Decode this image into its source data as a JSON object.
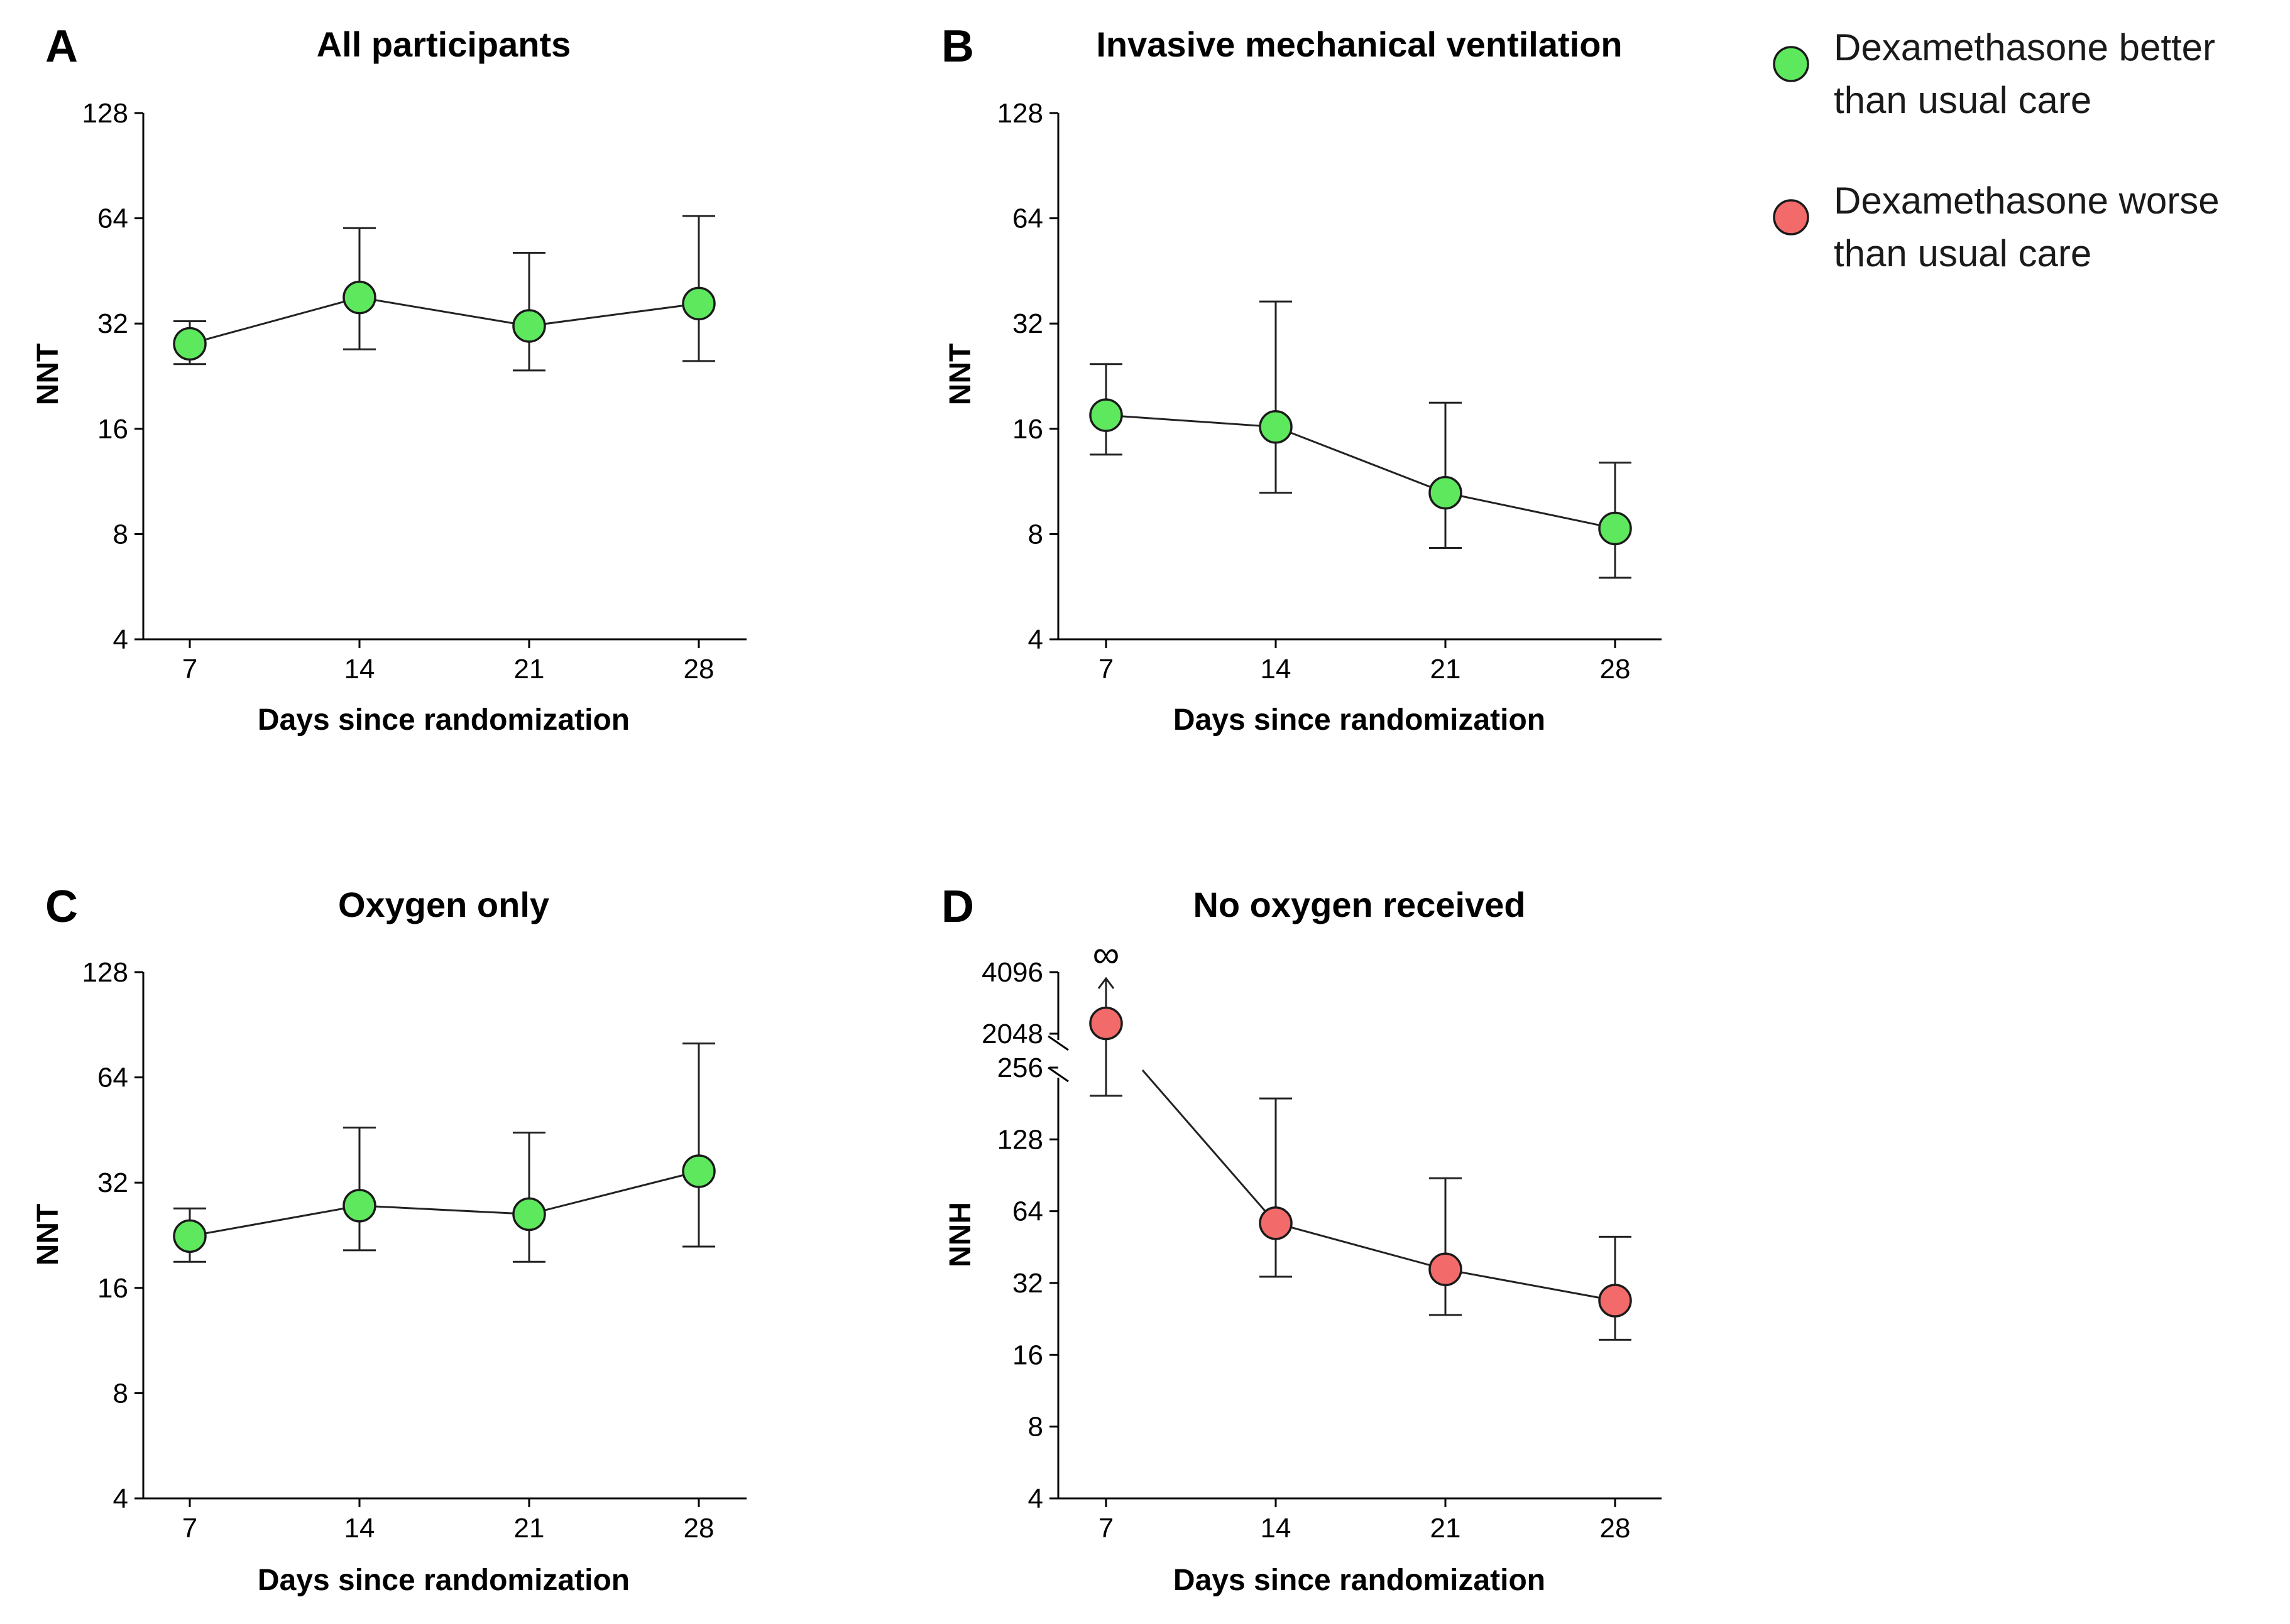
{
  "legend": {
    "items": [
      {
        "label_line1": "Dexamethasone better",
        "label_line2": "than usual care",
        "color": "#5ee85e"
      },
      {
        "label_line1": "Dexamethasone worse",
        "label_line2": "than usual care",
        "color": "#f26a6a"
      }
    ]
  },
  "chart_data": [
    {
      "type": "line",
      "panel": "A",
      "title": "All participants",
      "xlabel": "Days since randomization",
      "ylabel": "NNT",
      "yscale": "log2",
      "ylim": [
        4,
        128
      ],
      "yticks": [
        4,
        8,
        16,
        32,
        64,
        128
      ],
      "ytick_labels": [
        "4",
        "8",
        "16",
        "32",
        "64",
        "128"
      ],
      "x": [
        7,
        14,
        21,
        28
      ],
      "x_labels": [
        "7",
        "14",
        "21",
        "28"
      ],
      "values": [
        28,
        38,
        31.5,
        36.5
      ],
      "err_low": [
        24.5,
        27,
        23.5,
        25
      ],
      "err_high": [
        32.5,
        60,
        51,
        65
      ],
      "color": "#5ee85e"
    },
    {
      "type": "line",
      "panel": "B",
      "title": "Invasive mechanical ventilation",
      "xlabel": "Days since randomization",
      "ylabel": "NNT",
      "yscale": "log2",
      "ylim": [
        4,
        128
      ],
      "yticks": [
        4,
        8,
        16,
        32,
        64,
        128
      ],
      "ytick_labels": [
        "4",
        "8",
        "16",
        "32",
        "64",
        "128"
      ],
      "x": [
        7,
        14,
        21,
        28
      ],
      "x_labels": [
        "7",
        "14",
        "21",
        "28"
      ],
      "values": [
        17.5,
        16.2,
        10.5,
        8.3
      ],
      "err_low": [
        13.5,
        10.5,
        7.3,
        6.0
      ],
      "err_high": [
        24.5,
        37,
        19,
        12.8
      ],
      "color": "#5ee85e"
    },
    {
      "type": "line",
      "panel": "C",
      "title": "Oxygen only",
      "xlabel": "Days since randomization",
      "ylabel": "NNT",
      "yscale": "log2",
      "ylim": [
        4,
        128
      ],
      "yticks": [
        4,
        8,
        16,
        32,
        64,
        128
      ],
      "ytick_labels": [
        "4",
        "8",
        "16",
        "32",
        "64",
        "128"
      ],
      "x": [
        7,
        14,
        21,
        28
      ],
      "x_labels": [
        "7",
        "14",
        "21",
        "28"
      ],
      "values": [
        22.5,
        27.5,
        26,
        34.5
      ],
      "err_low": [
        19,
        20.5,
        19,
        21
      ],
      "err_high": [
        27,
        46,
        44.5,
        80
      ],
      "color": "#5ee85e"
    },
    {
      "type": "line",
      "panel": "D",
      "title": "No oxygen received",
      "xlabel": "Days since randomization",
      "ylabel": "NNH",
      "yscale": "log2",
      "axis_break": "between 256 and 2048",
      "ylim": [
        4,
        4096
      ],
      "yticks": [
        4,
        8,
        16,
        32,
        64,
        128,
        256,
        2048,
        4096
      ],
      "ytick_labels": [
        "4",
        "8",
        "16",
        "32",
        "64",
        "128",
        "256",
        "2048",
        "4096"
      ],
      "x": [
        7,
        14,
        21,
        28
      ],
      "x_labels": [
        "7",
        "14",
        "21",
        "28"
      ],
      "values": [
        2300,
        57,
        36.5,
        27
      ],
      "err_low": [
        195,
        34,
        23.5,
        18.5
      ],
      "err_high": [
        "∞",
        190,
        88,
        50
      ],
      "upper_infinite_symbol": "∞",
      "color": "#f26a6a"
    }
  ]
}
